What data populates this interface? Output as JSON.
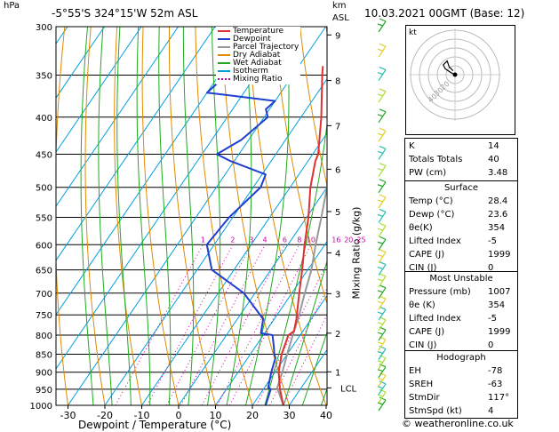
{
  "header": {
    "hpa_label": "hPa",
    "location": "-5°55'S  324°15'W  52m  ASL",
    "km_label": "km",
    "asl_label": "ASL",
    "datetime": "10.03.2021  00GMT  (Base: 12)"
  },
  "legend": {
    "items": [
      {
        "label": "Temperature",
        "color": "#e03030",
        "style": "solid"
      },
      {
        "label": "Dewpoint",
        "color": "#1f3fd0",
        "style": "solid"
      },
      {
        "label": "Parcel Trajectory",
        "color": "#999999",
        "style": "solid"
      },
      {
        "label": "Dry Adiabat",
        "color": "#e08a00",
        "style": "solid"
      },
      {
        "label": "Wet Adiabat",
        "color": "#22aa22",
        "style": "solid"
      },
      {
        "label": "Isotherm",
        "color": "#00a0e0",
        "style": "solid"
      },
      {
        "label": "Mixing Ratio",
        "color": "#cc00aa",
        "style": "dotted"
      }
    ]
  },
  "chart_data": {
    "type": "skew-t",
    "xlabel": "Dewpoint / Temperature (°C)",
    "ylabel": "hPa",
    "xlim": [
      -35,
      40
    ],
    "ylim": [
      1000,
      300
    ],
    "x_ticks": [
      -30,
      -20,
      -10,
      0,
      10,
      20,
      30,
      40
    ],
    "pressure_ticks": [
      300,
      350,
      400,
      450,
      500,
      550,
      600,
      650,
      700,
      750,
      800,
      850,
      900,
      950,
      1000
    ],
    "height_axis": {
      "label": "km ASL",
      "ticks": [
        {
          "label": "9",
          "p": 308
        },
        {
          "label": "8",
          "p": 356
        },
        {
          "label": "7",
          "p": 411
        },
        {
          "label": "6",
          "p": 472
        },
        {
          "label": "5",
          "p": 540
        },
        {
          "label": "4",
          "p": 616
        },
        {
          "label": "3",
          "p": 701
        },
        {
          "label": "2",
          "p": 795
        },
        {
          "label": "1",
          "p": 899
        }
      ],
      "lcl": {
        "label": "LCL",
        "p": 946
      }
    },
    "mixing_ratio_axis": {
      "label": "Mixing Ratio (g/kg)",
      "labels": [
        "1",
        "2",
        "3",
        "4",
        "6",
        "8",
        "10",
        "16",
        "20",
        "25"
      ],
      "values": [
        1,
        2,
        3,
        4,
        6,
        8,
        10,
        16,
        20,
        25
      ]
    },
    "temperature": {
      "name": "Temperature",
      "points": [
        [
          1000,
          28.4
        ],
        [
          950,
          24.5
        ],
        [
          900,
          21.0
        ],
        [
          850,
          18.5
        ],
        [
          800,
          16.8
        ],
        [
          790,
          17.6
        ],
        [
          760,
          16.0
        ],
        [
          700,
          12.0
        ],
        [
          650,
          8.5
        ],
        [
          600,
          4.5
        ],
        [
          550,
          0.5
        ],
        [
          500,
          -4.5
        ],
        [
          460,
          -8.0
        ],
        [
          450,
          -8.5
        ],
        [
          400,
          -14.5
        ],
        [
          350,
          -22.0
        ],
        [
          340,
          -23.5
        ]
      ]
    },
    "dewpoint": {
      "name": "Dewpoint",
      "points": [
        [
          1000,
          23.6
        ],
        [
          950,
          22.0
        ],
        [
          945,
          21.0
        ],
        [
          900,
          19.0
        ],
        [
          860,
          17.5
        ],
        [
          850,
          16.5
        ],
        [
          830,
          15.0
        ],
        [
          800,
          12.5
        ],
        [
          795,
          9.0
        ],
        [
          760,
          7.0
        ],
        [
          700,
          -3.0
        ],
        [
          650,
          -16.0
        ],
        [
          600,
          -22.0
        ],
        [
          550,
          -21.0
        ],
        [
          500,
          -18.0
        ],
        [
          480,
          -19.0
        ],
        [
          460,
          -31.0
        ],
        [
          450,
          -36.0
        ],
        [
          430,
          -32.0
        ],
        [
          400,
          -29.0
        ],
        [
          390,
          -31.0
        ],
        [
          380,
          -30.0
        ],
        [
          370,
          -50.0
        ],
        [
          340,
          -47.0
        ],
        [
          320,
          -44.0
        ],
        [
          300,
          -52.0
        ]
      ]
    },
    "parcel": {
      "name": "Parcel Trajectory",
      "points": [
        [
          1000,
          28.4
        ],
        [
          946,
          23.5
        ],
        [
          900,
          22.0
        ],
        [
          850,
          20.0
        ],
        [
          800,
          18.0
        ],
        [
          750,
          16.0
        ],
        [
          700,
          13.5
        ],
        [
          650,
          11.0
        ],
        [
          600,
          7.5
        ],
        [
          550,
          4.0
        ],
        [
          500,
          0.0
        ],
        [
          450,
          -5.0
        ],
        [
          400,
          -11.0
        ],
        [
          350,
          -19.0
        ],
        [
          300,
          -29.0
        ]
      ]
    }
  },
  "hodograph": {
    "label": "kt",
    "ring_labels": [
      "20",
      "30",
      "40"
    ],
    "points": [
      [
        0,
        0
      ],
      [
        -2,
        1
      ],
      [
        -5,
        3
      ],
      [
        -6,
        5
      ],
      [
        -4,
        7
      ],
      [
        -3,
        4
      ],
      [
        -1,
        2
      ]
    ]
  },
  "indices": [
    {
      "label": "K",
      "value": "14"
    },
    {
      "label": "Totals Totals",
      "value": "40"
    },
    {
      "label": "PW (cm)",
      "value": "3.48"
    }
  ],
  "surface": {
    "title": "Surface",
    "rows": [
      {
        "label": "Temp (°C)",
        "value": "28.4"
      },
      {
        "label": "Dewp (°C)",
        "value": "23.6"
      },
      {
        "label": "θe(K)",
        "value": "354"
      },
      {
        "label": "Lifted Index",
        "value": "-5"
      },
      {
        "label": "CAPE (J)",
        "value": "1999"
      },
      {
        "label": "CIN (J)",
        "value": "0"
      }
    ]
  },
  "most_unstable": {
    "title": "Most Unstable",
    "rows": [
      {
        "label": "Pressure (mb)",
        "value": "1007"
      },
      {
        "label": "θe (K)",
        "value": "354"
      },
      {
        "label": "Lifted Index",
        "value": "-5"
      },
      {
        "label": "CAPE (J)",
        "value": "1999"
      },
      {
        "label": "CIN (J)",
        "value": "0"
      }
    ]
  },
  "hodograph_table": {
    "title": "Hodograph",
    "rows": [
      {
        "label": "EH",
        "value": "-78"
      },
      {
        "label": "SREH",
        "value": "-63"
      },
      {
        "label": "StmDir",
        "value": "117°"
      },
      {
        "label": "StmSpd (kt)",
        "value": "4"
      }
    ]
  },
  "copyright": "© weatheronline.co.uk",
  "colors": {
    "temperature": "#e03030",
    "dewpoint": "#1f3fd0",
    "parcel": "#999999",
    "dry_adiabat": "#e08a00",
    "wet_adiabat": "#22aa22",
    "isotherm": "#00a0e0",
    "mixing_ratio": "#cc00aa",
    "wind_barbs": [
      "#22aa22",
      "#a8e028",
      "#20c0b0",
      "#e0d020"
    ]
  }
}
